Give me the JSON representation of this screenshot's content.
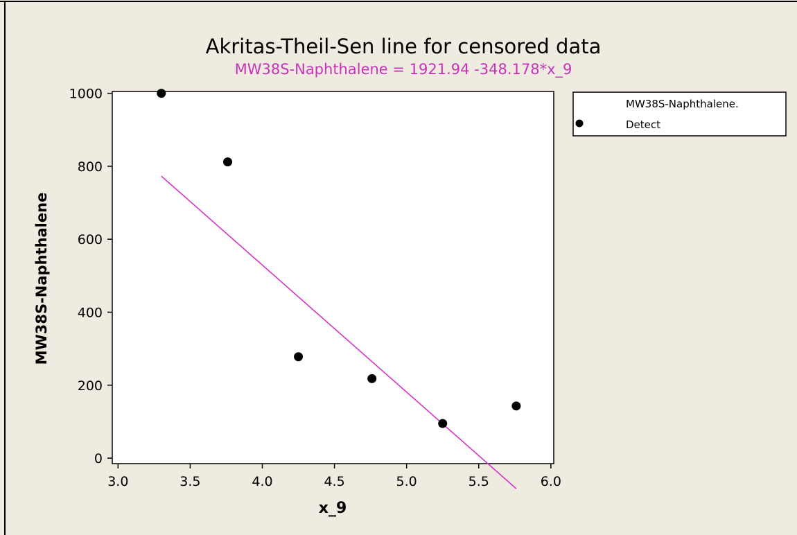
{
  "colors": {
    "background": "#f0ebe0",
    "plot_background": "#ffffff",
    "frame": "#000000",
    "line": "#d633c8",
    "points": "#000000",
    "subtitle": "#c433b8"
  },
  "chart_data": {
    "type": "scatter",
    "title": "Akritas-Theil-Sen line for censored data",
    "subtitle": "MW38S-Naphthalene = 1921.94 -348.178*x_9",
    "xlabel": "x_9",
    "ylabel": "MW38S-Naphthalene",
    "xlim": [
      2.96,
      6.02
    ],
    "ylim": [
      -15,
      1005
    ],
    "xticks": [
      "3.0",
      "3.5",
      "4.0",
      "4.5",
      "5.0",
      "5.5",
      "6.0"
    ],
    "yticks": [
      "0",
      "200",
      "400",
      "600",
      "800",
      "1000"
    ],
    "grid": false,
    "legend_position": "right",
    "legend": {
      "title": "MW38S-Naphthalene.",
      "entries": [
        "Detect"
      ]
    },
    "series": [
      {
        "name": "Detect",
        "type": "scatter",
        "x": [
          3.3,
          3.76,
          4.25,
          4.76,
          5.25,
          5.76
        ],
        "y": [
          1000,
          812,
          278,
          218,
          95,
          143
        ]
      }
    ],
    "fit_line": {
      "intercept": 1921.94,
      "slope": -348.178,
      "x_start": 3.3,
      "x_end": 5.76
    }
  }
}
